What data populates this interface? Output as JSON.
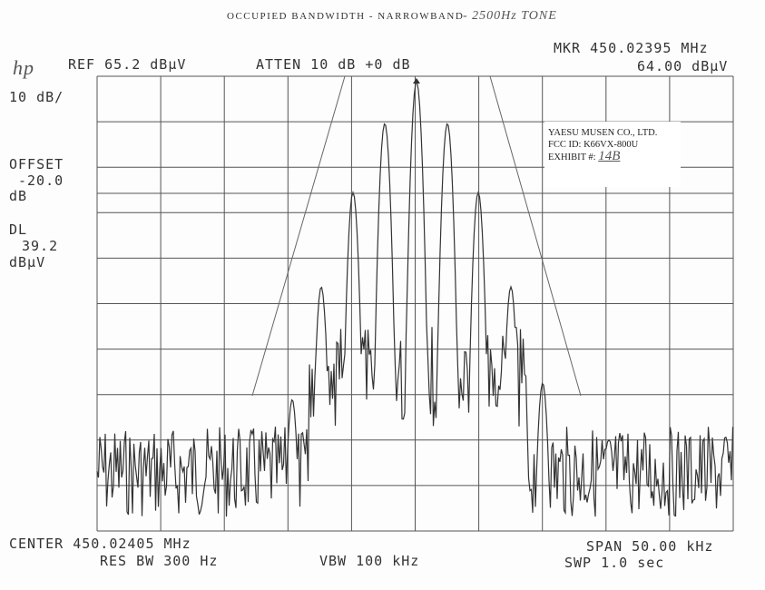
{
  "header": {
    "title": "OCCUPIED BANDWIDTH - NARROWBAND",
    "note": "- 2500Hz TONE"
  },
  "top": {
    "logo": "hp",
    "ref": "REF 65.2 dBμV",
    "atten": "ATTEN 10 dB +0 dB",
    "marker": "MKR 450.02395 MHz",
    "marker_level": "64.00 dBμV"
  },
  "left": {
    "scale": "10 dB/",
    "offset_label": "OFFSET",
    "offset_value": "-20.0",
    "offset_unit": "dB",
    "dl_label": "DL",
    "dl_value": "39.2",
    "dl_unit": "dBμV"
  },
  "stamp": {
    "company": "YAESU MUSEN CO., LTD.",
    "fcc_id": "FCC ID: K66VX-800U",
    "exhibit_label": "EXHIBIT #:",
    "exhibit_value": "14B"
  },
  "bottom": {
    "center": "CENTER 450.02405 MHz",
    "span": "SPAN 50.00 kHz",
    "res_bw": "RES BW 300 Hz",
    "vbw": "VBW 100 kHz",
    "sweep": "SWP 1.0 sec"
  }
}
